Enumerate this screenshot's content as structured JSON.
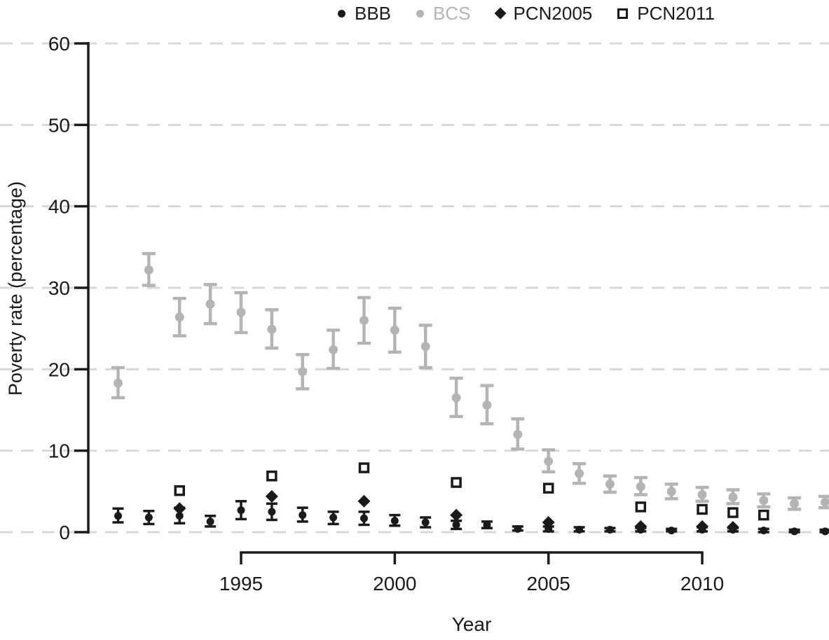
{
  "chart_data": {
    "type": "scatter",
    "title": "",
    "xlabel": "Year",
    "ylabel": "Poverty rate (percentage)",
    "xlim": [
      1990.5,
      2014.5
    ],
    "ylim": [
      0,
      60
    ],
    "yticks": [
      0,
      10,
      20,
      30,
      40,
      50,
      60
    ],
    "xticks": [
      1995,
      2000,
      2005,
      2010
    ],
    "grid": "horizontal-dashed",
    "grid_color": "#d8d8d8",
    "axis_color": "#1a1a1a",
    "background": "#ffffff",
    "legend_position": "top-center",
    "series": [
      {
        "name": "BBB",
        "marker": "circle",
        "color": "#1a1a1a",
        "legend_text_color": "#1a1a1a",
        "error_bars": true,
        "points": [
          {
            "year": 1991,
            "value": 2.0,
            "lo": 1.2,
            "hi": 2.9
          },
          {
            "year": 1992,
            "value": 1.8,
            "lo": 1.0,
            "hi": 2.6
          },
          {
            "year": 1993,
            "value": 2.0,
            "lo": 1.1,
            "hi": 3.0
          },
          {
            "year": 1994,
            "value": 1.3,
            "lo": 0.7,
            "hi": 2.0
          },
          {
            "year": 1995,
            "value": 2.7,
            "lo": 1.6,
            "hi": 3.8
          },
          {
            "year": 1996,
            "value": 2.5,
            "lo": 1.5,
            "hi": 3.5
          },
          {
            "year": 1997,
            "value": 2.1,
            "lo": 1.3,
            "hi": 3.0
          },
          {
            "year": 1998,
            "value": 1.8,
            "lo": 1.0,
            "hi": 2.5
          },
          {
            "year": 1999,
            "value": 1.7,
            "lo": 0.9,
            "hi": 2.5
          },
          {
            "year": 2000,
            "value": 1.4,
            "lo": 0.8,
            "hi": 2.1
          },
          {
            "year": 2001,
            "value": 1.2,
            "lo": 0.6,
            "hi": 1.8
          },
          {
            "year": 2002,
            "value": 0.9,
            "lo": 0.4,
            "hi": 1.4
          },
          {
            "year": 2003,
            "value": 0.9,
            "lo": 0.5,
            "hi": 1.3
          },
          {
            "year": 2004,
            "value": 0.4,
            "lo": 0.2,
            "hi": 0.7
          },
          {
            "year": 2005,
            "value": 0.4,
            "lo": 0.1,
            "hi": 0.7
          },
          {
            "year": 2006,
            "value": 0.3,
            "lo": 0.1,
            "hi": 0.6
          },
          {
            "year": 2007,
            "value": 0.3,
            "lo": 0.1,
            "hi": 0.5
          },
          {
            "year": 2008,
            "value": 0.3,
            "lo": 0.1,
            "hi": 0.5
          },
          {
            "year": 2009,
            "value": 0.2,
            "lo": 0.1,
            "hi": 0.4
          },
          {
            "year": 2010,
            "value": 0.3,
            "lo": 0.1,
            "hi": 0.6
          },
          {
            "year": 2011,
            "value": 0.3,
            "lo": 0.1,
            "hi": 0.5
          },
          {
            "year": 2012,
            "value": 0.2,
            "lo": 0.0,
            "hi": 0.4
          },
          {
            "year": 2013,
            "value": 0.1,
            "lo": 0.0,
            "hi": 0.3
          },
          {
            "year": 2014,
            "value": 0.1,
            "lo": 0.0,
            "hi": 0.3
          }
        ]
      },
      {
        "name": "BCS",
        "marker": "circle",
        "color": "#b4b4b4",
        "legend_text_color": "#b4b4b4",
        "error_bars": true,
        "points": [
          {
            "year": 1991,
            "value": 18.3,
            "lo": 16.5,
            "hi": 20.2
          },
          {
            "year": 1992,
            "value": 32.2,
            "lo": 30.3,
            "hi": 34.2
          },
          {
            "year": 1993,
            "value": 26.4,
            "lo": 24.1,
            "hi": 28.7
          },
          {
            "year": 1994,
            "value": 28.0,
            "lo": 25.6,
            "hi": 30.4
          },
          {
            "year": 1995,
            "value": 27.0,
            "lo": 24.5,
            "hi": 29.4
          },
          {
            "year": 1996,
            "value": 24.9,
            "lo": 22.6,
            "hi": 27.3
          },
          {
            "year": 1997,
            "value": 19.7,
            "lo": 17.6,
            "hi": 21.8
          },
          {
            "year": 1998,
            "value": 22.4,
            "lo": 20.1,
            "hi": 24.8
          },
          {
            "year": 1999,
            "value": 26.0,
            "lo": 23.2,
            "hi": 28.8
          },
          {
            "year": 2000,
            "value": 24.8,
            "lo": 22.1,
            "hi": 27.5
          },
          {
            "year": 2001,
            "value": 22.8,
            "lo": 20.2,
            "hi": 25.4
          },
          {
            "year": 2002,
            "value": 16.5,
            "lo": 14.2,
            "hi": 18.9
          },
          {
            "year": 2003,
            "value": 15.6,
            "lo": 13.3,
            "hi": 18.0
          },
          {
            "year": 2004,
            "value": 12.0,
            "lo": 10.2,
            "hi": 13.9
          },
          {
            "year": 2005,
            "value": 8.7,
            "lo": 7.4,
            "hi": 10.1
          },
          {
            "year": 2006,
            "value": 7.2,
            "lo": 6.0,
            "hi": 8.4
          },
          {
            "year": 2007,
            "value": 5.9,
            "lo": 4.9,
            "hi": 6.9
          },
          {
            "year": 2008,
            "value": 5.6,
            "lo": 4.6,
            "hi": 6.7
          },
          {
            "year": 2009,
            "value": 5.0,
            "lo": 4.1,
            "hi": 5.9
          },
          {
            "year": 2010,
            "value": 4.6,
            "lo": 3.8,
            "hi": 5.5
          },
          {
            "year": 2011,
            "value": 4.3,
            "lo": 3.5,
            "hi": 5.2
          },
          {
            "year": 2012,
            "value": 3.9,
            "lo": 3.1,
            "hi": 4.7
          },
          {
            "year": 2013,
            "value": 3.5,
            "lo": 2.8,
            "hi": 4.2
          },
          {
            "year": 2014,
            "value": 3.7,
            "lo": 3.0,
            "hi": 4.4
          }
        ]
      },
      {
        "name": "PCN2005",
        "marker": "diamond",
        "color": "#1a1a1a",
        "legend_text_color": "#1a1a1a",
        "error_bars": false,
        "points": [
          {
            "year": 1993,
            "value": 2.9
          },
          {
            "year": 1996,
            "value": 4.4
          },
          {
            "year": 1999,
            "value": 3.8
          },
          {
            "year": 2002,
            "value": 2.1
          },
          {
            "year": 2005,
            "value": 1.2
          },
          {
            "year": 2008,
            "value": 0.7
          },
          {
            "year": 2010,
            "value": 0.7
          },
          {
            "year": 2011,
            "value": 0.6
          }
        ]
      },
      {
        "name": "PCN2011",
        "marker": "square-open",
        "color": "#1a1a1a",
        "legend_text_color": "#1a1a1a",
        "error_bars": false,
        "points": [
          {
            "year": 1993,
            "value": 5.1
          },
          {
            "year": 1996,
            "value": 6.9
          },
          {
            "year": 1999,
            "value": 7.9
          },
          {
            "year": 2002,
            "value": 6.1
          },
          {
            "year": 2005,
            "value": 5.4
          },
          {
            "year": 2008,
            "value": 3.1
          },
          {
            "year": 2010,
            "value": 2.8
          },
          {
            "year": 2011,
            "value": 2.4
          },
          {
            "year": 2012,
            "value": 2.1
          }
        ]
      }
    ]
  }
}
